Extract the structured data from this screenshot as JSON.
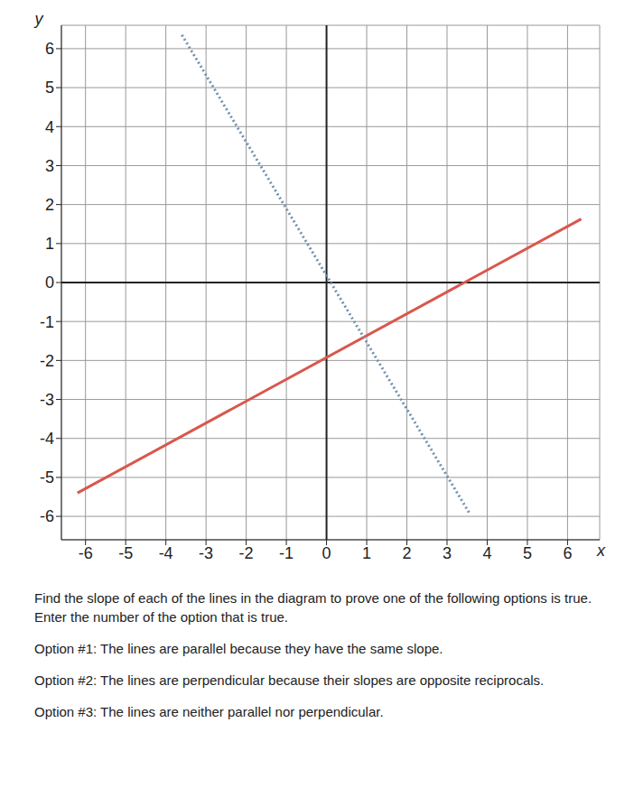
{
  "chart_data": {
    "type": "line",
    "xlabel": "x",
    "ylabel": "y",
    "xlim": [
      -6.6,
      6.8
    ],
    "ylim": [
      -6.6,
      6.6
    ],
    "xticks": [
      -6,
      -5,
      -4,
      -3,
      -2,
      -1,
      0,
      1,
      2,
      3,
      4,
      5,
      6
    ],
    "yticks": [
      -6,
      -5,
      -4,
      -3,
      -2,
      -1,
      0,
      1,
      2,
      3,
      4,
      5,
      6
    ],
    "grid": true,
    "series": [
      {
        "color": "#d9574c",
        "line_style": "solid",
        "x": [
          -6.2,
          6.34
        ],
        "values": [
          -5.4,
          1.63
        ]
      },
      {
        "color": "#6f8fb0",
        "line_style": "dotted",
        "x": [
          -3.6,
          3.57
        ],
        "values": [
          6.35,
          -5.94
        ]
      }
    ]
  },
  "question": {
    "prompt": "Find the slope of each of the lines in the diagram to prove one of the following options is true. Enter the number of the option that is true.",
    "options": [
      "Option #1: The lines are parallel because they have the same slope.",
      "Option #2: The lines are perpendicular because their slopes are opposite reciprocals.",
      "Option #3: The lines are neither parallel nor perpendicular."
    ]
  }
}
